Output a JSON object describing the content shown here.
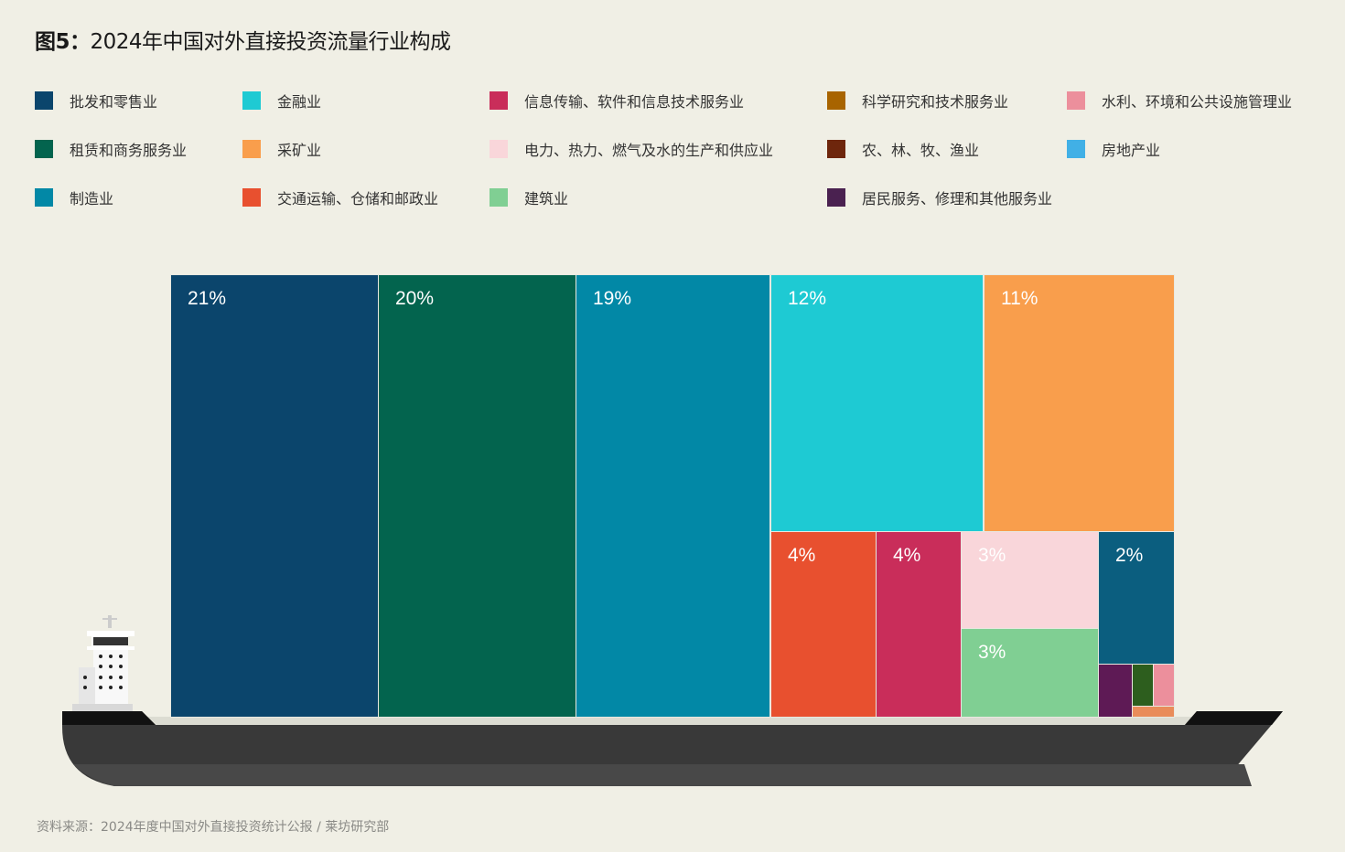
{
  "title_prefix": "图5：",
  "title_text": "2024年中国对外直接投资流量行业构成",
  "source": "资料来源：2024年度中国对外直接投资统计公报 / 莱坊研究部",
  "chart_data": {
    "type": "treemap",
    "title": "图5：2024年中国对外直接投资流量行业构成",
    "legend": [
      {
        "name": "批发和零售业",
        "color": "#0b456c"
      },
      {
        "name": "金融业",
        "color": "#1ecad3"
      },
      {
        "name": "信息传输、软件和信息技术服务业",
        "color": "#c92d5a"
      },
      {
        "name": "科学研究和技术服务业",
        "color": "#a86400"
      },
      {
        "name": "水利、环境和公共设施管理业",
        "color": "#ec8f9c"
      },
      {
        "name": "租赁和商务服务业",
        "color": "#03644e"
      },
      {
        "name": "采矿业",
        "color": "#f99e4c"
      },
      {
        "name": "电力、热力、燃气及水的生产和供应业",
        "color": "#f9d6da"
      },
      {
        "name": "农、林、牧、渔业",
        "color": "#6e260c"
      },
      {
        "name": "房地产业",
        "color": "#41b0e6"
      },
      {
        "name": "制造业",
        "color": "#0288a6"
      },
      {
        "name": "交通运输、仓储和邮政业",
        "color": "#e8502f"
      },
      {
        "name": "建筑业",
        "color": "#80cf93"
      },
      {
        "name": "居民服务、修理和其他服务业",
        "color": "#4a2150"
      }
    ],
    "legend_placement": "top",
    "cells": [
      {
        "category": "批发和零售业",
        "value": 21,
        "label": "21%",
        "color": "#0b456c"
      },
      {
        "category": "租赁和商务服务业",
        "value": 20,
        "label": "20%",
        "color": "#03644e"
      },
      {
        "category": "制造业",
        "value": 19,
        "label": "19%",
        "color": "#0288a6"
      },
      {
        "category": "金融业",
        "value": 12,
        "label": "12%",
        "color": "#1ecad3"
      },
      {
        "category": "采矿业",
        "value": 11,
        "label": "11%",
        "color": "#f99e4c"
      },
      {
        "category": "交通运输、仓储和邮政业",
        "value": 4,
        "label": "4%",
        "color": "#e8502f"
      },
      {
        "category": "信息传输、软件和信息技术服务业",
        "value": 4,
        "label": "4%",
        "color": "#c92d5a"
      },
      {
        "category": "电力、热力、燃气及水的生产和供应业",
        "value": 3,
        "label": "3%",
        "color": "#f9d6da"
      },
      {
        "category": "建筑业",
        "value": 3,
        "label": "3%",
        "color": "#80cf93"
      },
      {
        "value": 2,
        "label": "2%",
        "color": "#0b5e7f"
      },
      {
        "category": "居民服务、修理和其他服务业",
        "color": "#5e1a55"
      },
      {
        "color": "#2d5e1e"
      },
      {
        "category": "水利、环境和公共设施管理业",
        "color": "#ec8f9c"
      },
      {
        "color": "#e98c5a"
      }
    ]
  }
}
